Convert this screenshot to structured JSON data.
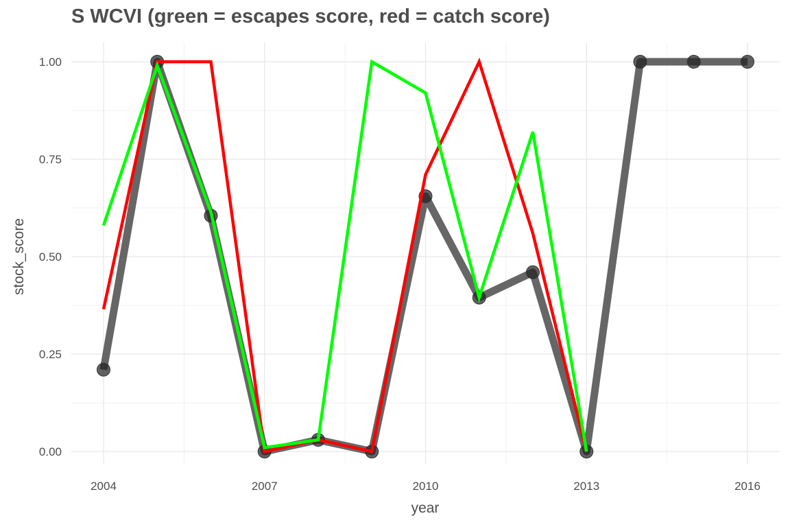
{
  "chart_data": {
    "type": "line",
    "title": "S WCVI (green = escapes score, red = catch score)",
    "xlabel": "year",
    "ylabel": "stock_score",
    "xlim": [
      2003.7,
      2016.6
    ],
    "ylim": [
      -0.02,
      1.05
    ],
    "grid": true,
    "legend": "none",
    "x_ticks": [
      2004,
      2007,
      2010,
      2013,
      2016
    ],
    "x_minor_ticks": [
      2005.5,
      2008.5,
      2011.5,
      2014.5
    ],
    "y_ticks": [
      0.0,
      0.25,
      0.5,
      0.75,
      1.0
    ],
    "y_tick_labels": [
      "0.00",
      "0.25",
      "0.50",
      "0.75",
      "1.00"
    ],
    "series": [
      {
        "color": "#555555",
        "style": "thick-line-with-points",
        "x": [
          2004,
          2005,
          2006,
          2007,
          2008,
          2009,
          2010,
          2011,
          2012,
          2013,
          2014,
          2015,
          2016
        ],
        "values": [
          0.21,
          1.0,
          0.605,
          0.0,
          0.03,
          0.0,
          0.655,
          0.395,
          0.46,
          0.0,
          1.0,
          1.0,
          1.0
        ]
      },
      {
        "color": "#ff0000",
        "style": "line",
        "x": [
          2004,
          2005,
          2006,
          2007,
          2008,
          2009,
          2010,
          2011,
          2012,
          2013
        ],
        "values": [
          0.365,
          1.0,
          1.0,
          0.0,
          0.03,
          0.0,
          0.71,
          1.0,
          0.56,
          0.0
        ]
      },
      {
        "color": "#00ff00",
        "style": "line",
        "x": [
          2004,
          2005,
          2006,
          2007,
          2008,
          2009,
          2010,
          2011,
          2012,
          2013
        ],
        "values": [
          0.58,
          0.99,
          0.615,
          0.01,
          0.03,
          1.0,
          0.92,
          0.395,
          0.82,
          0.0
        ]
      }
    ]
  }
}
